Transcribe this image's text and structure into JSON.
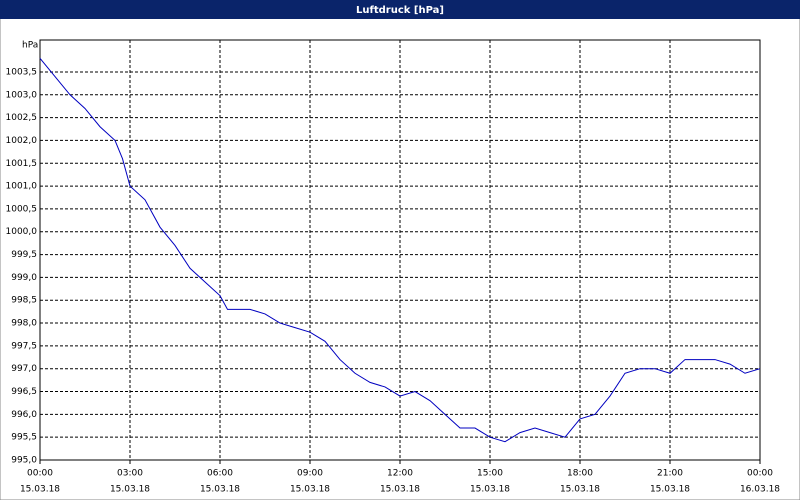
{
  "chart_data": {
    "type": "line",
    "title": "Luftdruck [hPa]",
    "y_label": "hPa",
    "x": [
      0,
      0.5,
      1,
      1.5,
      2,
      2.5,
      2.75,
      3,
      3.5,
      4,
      4.5,
      5,
      5.5,
      6,
      6.25,
      7,
      7.5,
      8,
      8.5,
      9,
      9.5,
      10,
      10.5,
      11,
      11.5,
      12,
      12.5,
      13,
      13.5,
      14,
      14.5,
      15,
      15.5,
      16,
      16.5,
      17,
      17.5,
      18,
      18.5,
      19,
      19.5,
      20,
      20.5,
      21,
      21.5,
      22,
      22.5,
      23,
      23.5,
      24
    ],
    "series": [
      {
        "name": "Luftdruck",
        "color": "#0000c0",
        "values": [
          1003.8,
          1003.4,
          1003.0,
          1002.7,
          1002.3,
          1002.0,
          1001.6,
          1001.0,
          1000.7,
          1000.1,
          999.7,
          999.2,
          998.9,
          998.6,
          998.3,
          998.3,
          998.2,
          998.0,
          997.9,
          997.8,
          997.6,
          997.2,
          996.9,
          996.7,
          996.6,
          996.4,
          996.5,
          996.3,
          996.0,
          995.7,
          995.7,
          995.5,
          995.4,
          995.6,
          995.7,
          995.6,
          995.5,
          995.9,
          996.0,
          996.4,
          996.9,
          997.0,
          997.0,
          996.9,
          997.2,
          997.2,
          997.2,
          997.1,
          996.9,
          997.0
        ]
      }
    ],
    "xlim": [
      0,
      24
    ],
    "xticks": [
      {
        "value": 0,
        "label": "00:00"
      },
      {
        "value": 3,
        "label": "03:00"
      },
      {
        "value": 6,
        "label": "06:00"
      },
      {
        "value": 9,
        "label": "09:00"
      },
      {
        "value": 12,
        "label": "12:00"
      },
      {
        "value": 15,
        "label": "15:00"
      },
      {
        "value": 18,
        "label": "18:00"
      },
      {
        "value": 21,
        "label": "21:00"
      },
      {
        "value": 24,
        "label": "00:00"
      }
    ],
    "xtick_dates": [
      "15.03.18",
      "15.03.18",
      "15.03.18",
      "15.03.18",
      "15.03.18",
      "15.03.18",
      "15.03.18",
      "15.03.18",
      "16.03.18"
    ],
    "ylim": [
      995,
      1004.2
    ],
    "yticks": [
      {
        "value": 995,
        "label": "995,0"
      },
      {
        "value": 995.5,
        "label": "995,5"
      },
      {
        "value": 996,
        "label": "996,0"
      },
      {
        "value": 996.5,
        "label": "996,5"
      },
      {
        "value": 997,
        "label": "997,0"
      },
      {
        "value": 997.5,
        "label": "997,5"
      },
      {
        "value": 998,
        "label": "998,0"
      },
      {
        "value": 998.5,
        "label": "998,5"
      },
      {
        "value": 999,
        "label": "999,0"
      },
      {
        "value": 999.5,
        "label": "999,5"
      },
      {
        "value": 1000,
        "label": "1000,0"
      },
      {
        "value": 1000.5,
        "label": "1000,5"
      },
      {
        "value": 1001,
        "label": "1001,0"
      },
      {
        "value": 1001.5,
        "label": "1001,5"
      },
      {
        "value": 1002,
        "label": "1002,0"
      },
      {
        "value": 1002.5,
        "label": "1002,5"
      },
      {
        "value": 1003,
        "label": "1003,0"
      },
      {
        "value": 1003.5,
        "label": "1003,5"
      }
    ],
    "grid": true
  }
}
